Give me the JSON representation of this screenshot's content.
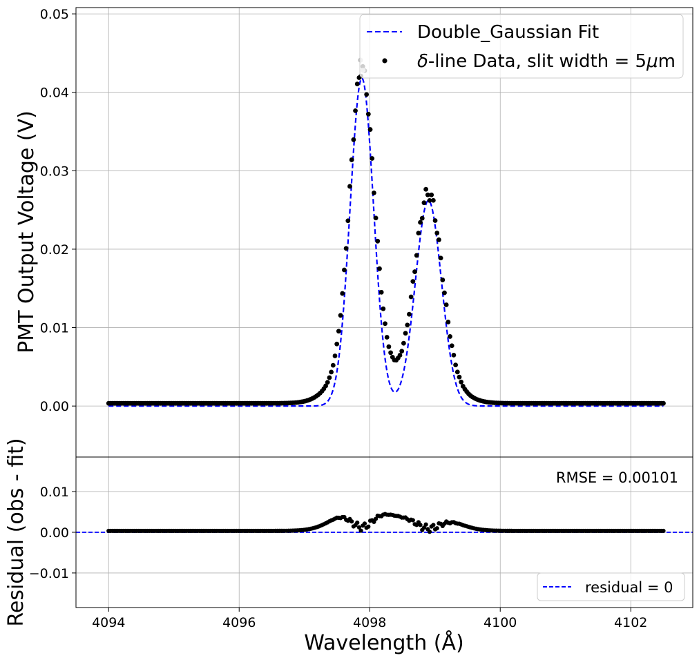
{
  "chart_data": {
    "type": "scatter",
    "x_range": [
      4094,
      4102.5
    ],
    "peaks": [
      {
        "center": 4097.88,
        "amplitude": 0.0418,
        "sigma": 0.18
      },
      {
        "center": 4098.9,
        "amplitude": 0.0262,
        "sigma": 0.2
      }
    ],
    "xlabel": "Wavelength (Å)",
    "xlim": [
      4093.5,
      4102.95
    ],
    "xticks": [
      4094,
      4096,
      4098,
      4100,
      4102
    ],
    "grid": true,
    "panels": [
      {
        "name": "main",
        "ylabel": "PMT Output Voltage (V)",
        "ylim": [
          -0.0065,
          0.0508
        ],
        "yticks": [
          {
            "value": 0.0,
            "label": "0.00"
          },
          {
            "value": 0.01,
            "label": "0.01"
          },
          {
            "value": 0.02,
            "label": "0.02"
          },
          {
            "value": 0.03,
            "label": "0.03"
          },
          {
            "value": 0.04,
            "label": "0.04"
          },
          {
            "value": 0.05,
            "label": "0.05"
          }
        ],
        "legend": {
          "placement": "upper-right",
          "entries": [
            {
              "type": "dashed-line",
              "color": "#0000ff",
              "label": "Double_Gaussian Fit"
            },
            {
              "type": "marker",
              "color": "#000000",
              "symbol": "δ",
              "label_suffix": "-line Data, slit width = 5",
              "mu": "μ",
              "unit": "m"
            }
          ]
        },
        "data_highlights": [
          {
            "x": 4097.9,
            "y": 0.0428
          },
          {
            "x": 4097.86,
            "y": 0.0441
          }
        ]
      },
      {
        "name": "residual",
        "ylabel": "Residual (obs - fit)",
        "ylim": [
          -0.0185,
          0.0185
        ],
        "yticks": [
          {
            "value": -0.01,
            "label": "−0.01"
          },
          {
            "value": 0.0,
            "label": "0.00"
          },
          {
            "value": 0.01,
            "label": "0.01"
          }
        ],
        "annotation": "RMSE = 0.00101",
        "reference_line": {
          "y": 0,
          "color": "#0000ff",
          "style": "dashed"
        },
        "legend": {
          "placement": "lower-right",
          "entries": [
            {
              "type": "dashed-line",
              "color": "#0000ff",
              "label": "residual = 0"
            }
          ]
        }
      }
    ],
    "colors": {
      "fit": "#0000ff",
      "data": "#000000",
      "highlight": "#bbbbbb"
    }
  }
}
